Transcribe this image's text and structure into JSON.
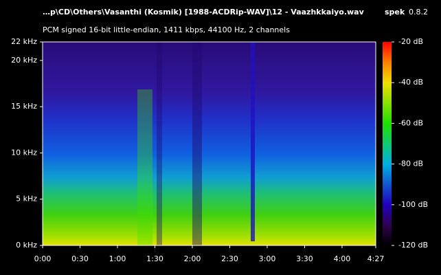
{
  "app": {
    "name": "spek",
    "version": "0.8.2"
  },
  "chart_data": {
    "type": "spectrogram",
    "title": "…p\\CD\\Others\\Vasanthi (Kosmik) [1988-ACDRip-WAV]\\12 - Vaazhkkaiyo.wav",
    "subtitle": "PCM signed 16-bit little-endian, 1411 kbps, 44100 Hz, 2 channels",
    "xlim": [
      0,
      267
    ],
    "xticks": [
      {
        "value": 0,
        "label": "0:00"
      },
      {
        "value": 30,
        "label": "0:30"
      },
      {
        "value": 60,
        "label": "1:00"
      },
      {
        "value": 90,
        "label": "1:30"
      },
      {
        "value": 120,
        "label": "2:00"
      },
      {
        "value": 150,
        "label": "2:30"
      },
      {
        "value": 180,
        "label": "3:00"
      },
      {
        "value": 210,
        "label": "3:30"
      },
      {
        "value": 240,
        "label": "4:00"
      },
      {
        "value": 267,
        "label": "4:27"
      }
    ],
    "ylim": [
      0,
      22
    ],
    "yticks": [
      {
        "value": 0,
        "label": "0 kHz"
      },
      {
        "value": 5,
        "label": "5 kHz"
      },
      {
        "value": 10,
        "label": "10 kHz"
      },
      {
        "value": 15,
        "label": "15 kHz"
      },
      {
        "value": 20,
        "label": "20 kHz"
      },
      {
        "value": 22,
        "label": "22 kHz"
      }
    ],
    "colorbar": {
      "lim": [
        -120,
        -20
      ],
      "ticks": [
        {
          "value": -20,
          "label": "-20 dB"
        },
        {
          "value": -40,
          "label": "-40 dB"
        },
        {
          "value": -60,
          "label": "-60 dB"
        },
        {
          "value": -80,
          "label": "-80 dB"
        },
        {
          "value": -100,
          "label": "-100 dB"
        },
        {
          "value": -120,
          "label": "-120 dB"
        }
      ]
    }
  }
}
